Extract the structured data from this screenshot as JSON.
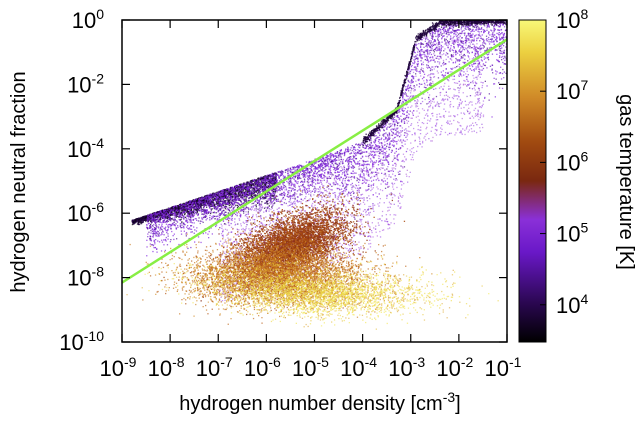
{
  "chart_data": {
    "type": "scatter",
    "title": "",
    "xlabel": "hydrogen number density [cm",
    "xlabel_sup": "-3",
    "xlabel_end": "]",
    "ylabel": "hydrogen neutral fraction",
    "xscale": "log",
    "yscale": "log",
    "xlim": [
      1e-09,
      0.1
    ],
    "ylim": [
      1e-10,
      1
    ],
    "x_ticks": [
      {
        "base": "10",
        "exp": "-9"
      },
      {
        "base": "10",
        "exp": "-8"
      },
      {
        "base": "10",
        "exp": "-7"
      },
      {
        "base": "10",
        "exp": "-6"
      },
      {
        "base": "10",
        "exp": "-5"
      },
      {
        "base": "10",
        "exp": "-4"
      },
      {
        "base": "10",
        "exp": "-3"
      },
      {
        "base": "10",
        "exp": "-2"
      },
      {
        "base": "10",
        "exp": "-1"
      }
    ],
    "y_ticks": [
      {
        "base": "10",
        "exp": "0"
      },
      {
        "base": "10",
        "exp": "-2"
      },
      {
        "base": "10",
        "exp": "-4"
      },
      {
        "base": "10",
        "exp": "-6"
      },
      {
        "base": "10",
        "exp": "-8"
      },
      {
        "base": "10",
        "exp": "-10"
      }
    ],
    "colorbar": {
      "label": "gas temperature [K]",
      "scale": "log",
      "range": [
        3000,
        100000000
      ],
      "ticks": [
        {
          "base": "10",
          "exp": "8"
        },
        {
          "base": "10",
          "exp": "7"
        },
        {
          "base": "10",
          "exp": "6"
        },
        {
          "base": "10",
          "exp": "5"
        },
        {
          "base": "10",
          "exp": "4"
        }
      ],
      "colormap": [
        "#000000",
        "#3a0a6e",
        "#7a1ee0",
        "#a040e0",
        "#8a3010",
        "#b85a14",
        "#d89a30",
        "#f0e040",
        "#f8f870"
      ]
    },
    "series": [
      {
        "kind": "scatter",
        "color_by": "temperature",
        "regions": [
          {
            "description": "upper branch",
            "points": [
              [
                1.5e-09,
                6e-07
              ],
              [
                1e-07,
                1e-05
              ],
              [
                1e-05,
                7e-05
              ],
              [
                0.0001,
                0.0002
              ],
              [
                0.0003,
                0.003
              ],
              [
                0.001,
                0.3
              ],
              [
                0.003,
                0.8
              ],
              [
                0.1,
                1
              ]
            ],
            "temperature": 20000
          },
          {
            "description": "cold edge",
            "points": [
              [
                1.5e-09,
                6e-07
              ],
              [
                1e-06,
                3e-05
              ]
            ],
            "temperature": 5000
          },
          {
            "description": "hot cloud",
            "center": [
              3e-06,
              1e-07
            ],
            "temperature_range": [
              300000,
              10000000
            ]
          }
        ]
      },
      {
        "kind": "line",
        "color": "#88ee44",
        "points": [
          [
            1e-09,
            7e-09
          ],
          [
            0.1,
            0.25
          ]
        ]
      }
    ],
    "grid": false
  },
  "colors": {
    "axis": "#000000",
    "fit_line": "#88ee44"
  }
}
